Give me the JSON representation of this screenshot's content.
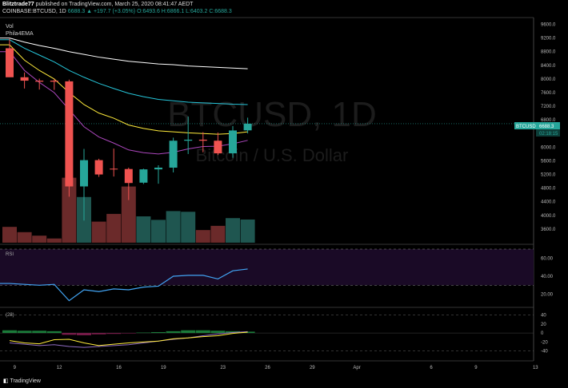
{
  "header": {
    "author": "Blitztrade77",
    "published": "published on TradingView.com, March 25, 2020 08:41:47 AEDT",
    "symbol": "COINBASE:BTCUSD, 1D",
    "last": "6688.3",
    "change": "▲ +197.7 (+3.05%)",
    "ohlc": "O:6493.6 H:6866.1 L:6403.2 C:6688.3"
  },
  "watermark": {
    "symbol": "BTCUSD, 1D",
    "name": "Bitcoin / U.S. Dollar"
  },
  "indicators": {
    "vol": "Vol",
    "ema": "Phila4EMA",
    "rsi": "RSI",
    "osc": "(28)"
  },
  "price_label": {
    "symbol": "BTCUSD",
    "value": "6688.3",
    "countdown": "02:18:15"
  },
  "colors": {
    "up": "#26a69a",
    "down": "#ef5350",
    "ema_white": "#ffffff",
    "ema_cyan": "#26c6da",
    "ema_yellow": "#ffeb3b",
    "ema_purple": "#ab47bc",
    "rsi_line": "#42a5f5"
  },
  "footer": {
    "brand": "TradingView"
  },
  "chart_data": [
    {
      "type": "candlestick",
      "title": "COINBASE:BTCUSD, 1D",
      "x": [
        "2020-03-08",
        "2020-03-09",
        "2020-03-10",
        "2020-03-11",
        "2020-03-12",
        "2020-03-13",
        "2020-03-14",
        "2020-03-15",
        "2020-03-16",
        "2020-03-17",
        "2020-03-18",
        "2020-03-19",
        "2020-03-20",
        "2020-03-21",
        "2020-03-22",
        "2020-03-23",
        "2020-03-24"
      ],
      "open": [
        8900,
        8050,
        7950,
        7950,
        7930,
        4850,
        5620,
        5370,
        5360,
        4960,
        5350,
        5400,
        6190,
        6220,
        6190,
        5820,
        6493.6
      ],
      "high": [
        9180,
        8190,
        8010,
        8000,
        7980,
        5950,
        5660,
        5960,
        5400,
        5370,
        5470,
        6280,
        6900,
        6440,
        6430,
        6620,
        6866.1
      ],
      "low": [
        8060,
        7720,
        7690,
        7680,
        4550,
        3850,
        5130,
        5140,
        4450,
        4920,
        4930,
        5260,
        5800,
        5850,
        5770,
        5690,
        6403.2
      ],
      "close": [
        8050,
        7950,
        7920,
        7920,
        4850,
        5620,
        5200,
        5360,
        4950,
        5350,
        5400,
        6190,
        6220,
        6190,
        5820,
        6490,
        6688.3
      ],
      "volume": [
        0.45,
        0.3,
        0.2,
        0.12,
        1.85,
        1.3,
        0.6,
        0.82,
        1.6,
        0.75,
        0.65,
        0.9,
        0.88,
        0.36,
        0.48,
        0.7,
        0.66
      ],
      "ema": [
        {
          "color": "#ffffff",
          "values": [
            9200,
            9080,
            8980,
            8900,
            8800,
            8720,
            8640,
            8580,
            8520,
            8480,
            8440,
            8420,
            8380,
            8360,
            8340,
            8320,
            8300
          ]
        },
        {
          "color": "#26c6da",
          "values": [
            9150,
            8900,
            8700,
            8500,
            8250,
            8050,
            7870,
            7720,
            7580,
            7480,
            7400,
            7360,
            7320,
            7300,
            7280,
            7260,
            7250
          ]
        },
        {
          "color": "#ffeb3b",
          "values": [
            9000,
            8550,
            8250,
            8000,
            7600,
            7250,
            7000,
            6850,
            6650,
            6550,
            6480,
            6450,
            6420,
            6400,
            6380,
            6400,
            6450
          ]
        },
        {
          "color": "#ab47bc",
          "values": [
            8800,
            8250,
            7900,
            7600,
            7100,
            6600,
            6300,
            6120,
            5920,
            5840,
            5800,
            5850,
            5950,
            6020,
            6030,
            6100,
            6200
          ]
        }
      ],
      "ylim": [
        3200,
        9800
      ],
      "yticks": [
        3600,
        4000,
        4400,
        4800,
        5200,
        5600,
        6000,
        6400,
        6800,
        7200,
        7600,
        8000,
        8400,
        8800,
        9200,
        9600
      ],
      "xticks": [
        "9",
        "12",
        "16",
        "19",
        "23",
        "26",
        "29",
        "Apr",
        "6",
        "9",
        "13"
      ]
    },
    {
      "type": "line",
      "title": "RSI",
      "values": [
        32,
        31,
        30,
        31,
        13,
        25,
        23,
        26,
        25,
        28,
        29,
        40,
        41,
        41,
        37,
        46,
        48
      ],
      "ylim": [
        10,
        70
      ],
      "yticks": [
        20.0,
        40.0,
        60.0
      ],
      "bands": [
        30,
        70
      ]
    },
    {
      "type": "oscillator",
      "title": "(28)",
      "yticks": [
        40,
        20,
        0,
        -20,
        -40
      ],
      "ylim": [
        -55,
        50
      ],
      "line_yellow": [
        -17,
        -22,
        -24,
        -15,
        -14,
        -22,
        -28,
        -25,
        -22,
        -20,
        -18,
        -13,
        -11,
        -8,
        -6,
        -1,
        2
      ],
      "line_purple": [
        -22,
        -25,
        -28,
        -26,
        -30,
        -32,
        -30,
        -28,
        -26,
        -22,
        -18,
        -14,
        -11,
        -6,
        -2,
        1,
        3
      ],
      "bars": [
        6,
        5,
        5,
        4,
        -4,
        -5,
        -3,
        -2,
        -1,
        1,
        2,
        4,
        6,
        6,
        5,
        4,
        3
      ]
    }
  ]
}
